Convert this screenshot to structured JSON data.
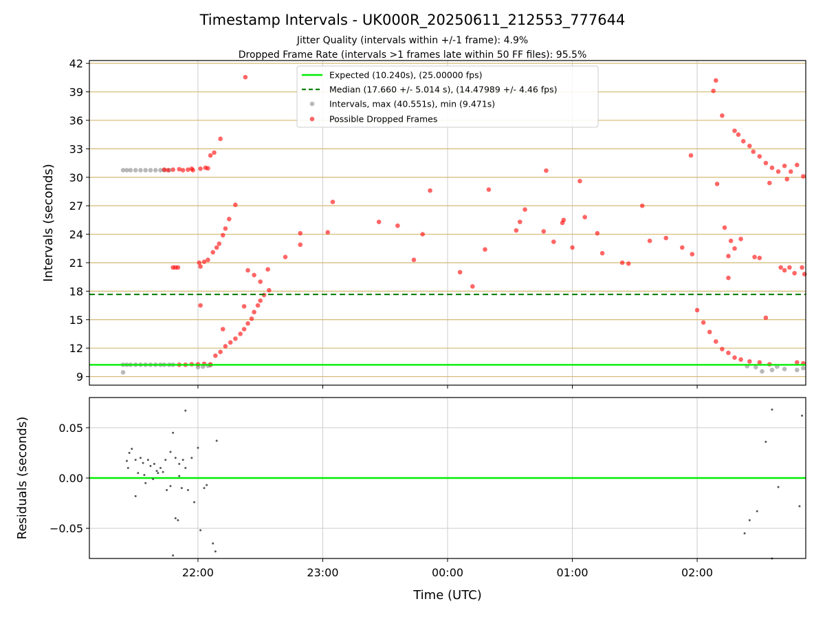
{
  "colors": {
    "expected": "#00ee00",
    "median": "#008000",
    "intervals": "#808080",
    "dropped": "#ff0000",
    "hgrid": "#d4b870",
    "vgrid": "#cccccc"
  },
  "title": "Timestamp Intervals - UK000R_20250611_212553_777644",
  "subtitle_1": "Jitter Quality (intervals within +/-1 frame): 4.9%",
  "subtitle_2": "Dropped Frame Rate (intervals >1 frames late within 50 FF files): 95.5%",
  "chart_data": [
    {
      "type": "scatter",
      "xlabel": "",
      "ylabel": "Intervals (seconds)",
      "x_unit": "hours since 00:00 UTC (negative = previous day)",
      "xlim": [
        -2.87,
        2.87
      ],
      "ylim": [
        8.1,
        42.3
      ],
      "x_ticks": [
        -2,
        -1,
        0,
        1,
        2
      ],
      "x_tick_labels": [
        "22:00",
        "23:00",
        "00:00",
        "01:00",
        "02:00"
      ],
      "y_ticks": [
        9,
        12,
        15,
        18,
        21,
        24,
        27,
        30,
        33,
        36,
        39,
        42
      ],
      "y_tick_labels": [
        "9",
        "12",
        "15",
        "18",
        "21",
        "24",
        "27",
        "30",
        "33",
        "36",
        "39",
        "42"
      ],
      "legend_position": "top-center",
      "legend": [
        "Expected (10.240s), (25.00000 fps)",
        "Median (17.660 +/- 5.014 s), (14.47989 +/- 4.46 fps)",
        "Intervals, max (40.551s), min (9.471s)",
        "Possible Dropped Frames"
      ],
      "expected_line": 10.24,
      "median_line": 17.66,
      "series": [
        {
          "name": "Intervals, max (40.551s), min (9.471s)",
          "points": [
            [
              -2.6,
              9.45
            ],
            [
              -2.6,
              30.75
            ],
            [
              -2.57,
              30.75
            ],
            [
              -2.54,
              30.75
            ],
            [
              -2.5,
              30.75
            ],
            [
              -2.46,
              30.75
            ],
            [
              -2.42,
              30.75
            ],
            [
              -2.38,
              30.75
            ],
            [
              -2.34,
              30.75
            ],
            [
              -2.3,
              30.75
            ],
            [
              -2.27,
              30.75
            ],
            [
              -2.23,
              30.75
            ],
            [
              -2.6,
              10.25
            ],
            [
              -2.57,
              10.25
            ],
            [
              -2.54,
              10.25
            ],
            [
              -2.5,
              10.25
            ],
            [
              -2.46,
              10.25
            ],
            [
              -2.42,
              10.25
            ],
            [
              -2.38,
              10.25
            ],
            [
              -2.34,
              10.25
            ],
            [
              -2.3,
              10.25
            ],
            [
              -2.27,
              10.25
            ],
            [
              -2.23,
              10.25
            ],
            [
              -2.2,
              10.25
            ],
            [
              -2.0,
              10.0
            ],
            [
              -1.96,
              10.05
            ],
            [
              -1.92,
              10.15
            ],
            [
              -1.9,
              10.2
            ],
            [
              2.4,
              10.1
            ],
            [
              2.47,
              10.0
            ],
            [
              2.52,
              9.55
            ],
            [
              2.6,
              9.7
            ],
            [
              2.64,
              10.05
            ],
            [
              2.7,
              9.8
            ],
            [
              2.8,
              9.7
            ],
            [
              2.85,
              9.9
            ]
          ]
        },
        {
          "name": "Possible Dropped Frames",
          "points": [
            [
              -2.27,
              30.8
            ],
            [
              -2.24,
              30.75
            ],
            [
              -2.2,
              30.8
            ],
            [
              -2.15,
              30.85
            ],
            [
              -2.12,
              30.75
            ],
            [
              -2.08,
              30.8
            ],
            [
              -2.05,
              30.9
            ],
            [
              -2.04,
              30.75
            ],
            [
              -1.98,
              30.9
            ],
            [
              -1.94,
              31.0
            ],
            [
              -1.92,
              30.95
            ],
            [
              -1.9,
              32.3
            ],
            [
              -1.87,
              32.6
            ],
            [
              -1.82,
              34.05
            ],
            [
              -1.7,
              27.1
            ],
            [
              -1.75,
              25.6
            ],
            [
              -1.78,
              24.6
            ],
            [
              -1.8,
              23.9
            ],
            [
              -1.83,
              23.0
            ],
            [
              -1.85,
              22.6
            ],
            [
              -1.88,
              22.1
            ],
            [
              -1.92,
              21.3
            ],
            [
              -1.95,
              21.1
            ],
            [
              -1.99,
              21.0
            ],
            [
              -1.98,
              20.6
            ],
            [
              -1.98,
              16.5
            ],
            [
              -2.2,
              20.5
            ],
            [
              -2.18,
              20.5
            ],
            [
              -2.16,
              20.5
            ],
            [
              -1.62,
              40.55
            ],
            [
              -1.8,
              14.0
            ],
            [
              -1.86,
              11.2
            ],
            [
              -1.82,
              11.6
            ],
            [
              -1.78,
              12.2
            ],
            [
              -1.74,
              12.6
            ],
            [
              -1.7,
              13.0
            ],
            [
              -1.66,
              13.5
            ],
            [
              -1.63,
              14.0
            ],
            [
              -1.6,
              14.6
            ],
            [
              -1.57,
              15.1
            ],
            [
              -1.55,
              15.8
            ],
            [
              -1.52,
              16.5
            ],
            [
              -1.5,
              17.0
            ],
            [
              -1.47,
              17.6
            ],
            [
              -1.43,
              18.1
            ],
            [
              -1.63,
              16.4
            ],
            [
              -1.6,
              20.2
            ],
            [
              -1.55,
              19.7
            ],
            [
              -1.5,
              19.0
            ],
            [
              -1.44,
              20.3
            ],
            [
              -1.3,
              21.6
            ],
            [
              -1.18,
              24.1
            ],
            [
              -1.18,
              22.9
            ],
            [
              -0.92,
              27.4
            ],
            [
              -0.96,
              24.2
            ],
            [
              -0.55,
              25.3
            ],
            [
              -0.4,
              24.9
            ],
            [
              -0.14,
              28.6
            ],
            [
              -0.2,
              24.0
            ],
            [
              -0.27,
              21.3
            ],
            [
              0.1,
              20.0
            ],
            [
              0.2,
              18.5
            ],
            [
              0.3,
              22.4
            ],
            [
              0.33,
              28.7
            ],
            [
              0.55,
              24.4
            ],
            [
              0.58,
              25.3
            ],
            [
              0.62,
              26.6
            ],
            [
              0.77,
              24.3
            ],
            [
              0.79,
              30.7
            ],
            [
              0.85,
              23.2
            ],
            [
              0.92,
              25.2
            ],
            [
              0.93,
              25.5
            ],
            [
              1.0,
              22.6
            ],
            [
              1.06,
              29.6
            ],
            [
              1.1,
              25.8
            ],
            [
              1.2,
              24.1
            ],
            [
              1.24,
              22.0
            ],
            [
              1.4,
              21.0
            ],
            [
              1.45,
              20.9
            ],
            [
              1.56,
              27.0
            ],
            [
              1.62,
              23.3
            ],
            [
              1.75,
              23.6
            ],
            [
              1.88,
              22.6
            ],
            [
              1.96,
              21.9
            ],
            [
              1.95,
              32.3
            ],
            [
              2.16,
              29.3
            ],
            [
              2.15,
              40.2
            ],
            [
              2.2,
              36.5
            ],
            [
              2.13,
              39.1
            ],
            [
              2.22,
              24.7
            ],
            [
              2.27,
              23.3
            ],
            [
              2.3,
              22.5
            ],
            [
              2.25,
              21.7
            ],
            [
              2.35,
              23.5
            ],
            [
              2.46,
              21.6
            ],
            [
              2.5,
              21.5
            ],
            [
              2.25,
              19.4
            ],
            [
              2.55,
              15.2
            ],
            [
              2.3,
              34.9
            ],
            [
              2.33,
              34.5
            ],
            [
              2.37,
              33.8
            ],
            [
              2.42,
              33.3
            ],
            [
              2.45,
              32.7
            ],
            [
              2.5,
              32.2
            ],
            [
              2.55,
              31.5
            ],
            [
              2.6,
              31.0
            ],
            [
              2.65,
              30.6
            ],
            [
              2.7,
              31.2
            ],
            [
              2.75,
              30.6
            ],
            [
              2.8,
              31.3
            ],
            [
              2.85,
              30.1
            ],
            [
              2.58,
              29.4
            ],
            [
              2.72,
              29.8
            ],
            [
              2.67,
              20.5
            ],
            [
              2.7,
              20.2
            ],
            [
              2.74,
              20.5
            ],
            [
              2.78,
              19.9
            ],
            [
              2.84,
              20.5
            ],
            [
              2.86,
              19.8
            ],
            [
              2.0,
              16.0
            ],
            [
              2.05,
              14.7
            ],
            [
              2.1,
              13.7
            ],
            [
              2.15,
              12.7
            ],
            [
              2.2,
              11.9
            ],
            [
              2.25,
              11.5
            ],
            [
              2.3,
              11.0
            ],
            [
              2.35,
              10.8
            ],
            [
              2.42,
              10.6
            ],
            [
              2.5,
              10.5
            ],
            [
              2.58,
              10.3
            ],
            [
              2.8,
              10.5
            ],
            [
              2.85,
              10.4
            ],
            [
              -2.15,
              10.25
            ],
            [
              -2.1,
              10.25
            ],
            [
              -2.05,
              10.3
            ],
            [
              -2.0,
              10.3
            ],
            [
              -1.95,
              10.35
            ],
            [
              -1.9,
              10.3
            ]
          ]
        }
      ]
    },
    {
      "type": "scatter",
      "xlabel": "Time (UTC)",
      "ylabel": "Residuals (seconds)",
      "xlim": [
        -2.87,
        2.87
      ],
      "ylim": [
        -0.08,
        0.08
      ],
      "y_ticks": [
        -0.05,
        0.0,
        0.05
      ],
      "y_tick_labels": [
        "−0.05",
        "0.00",
        "0.05"
      ],
      "x_tick_labels": [
        "22:00",
        "23:00",
        "00:00",
        "01:00",
        "02:00"
      ],
      "zero_line": 0.0,
      "series": [
        {
          "name": "residuals",
          "points": [
            [
              -2.57,
              0.017
            ],
            [
              -2.55,
              0.025
            ],
            [
              -2.53,
              0.029
            ],
            [
              -2.56,
              0.01
            ],
            [
              -2.5,
              0.018
            ],
            [
              -2.46,
              0.02
            ],
            [
              -2.44,
              0.015
            ],
            [
              -2.4,
              0.018
            ],
            [
              -2.38,
              0.012
            ],
            [
              -2.35,
              0.014
            ],
            [
              -2.3,
              0.01
            ],
            [
              -2.26,
              0.018
            ],
            [
              -2.22,
              0.026
            ],
            [
              -2.18,
              0.02
            ],
            [
              -2.15,
              0.014
            ],
            [
              -2.12,
              0.018
            ],
            [
              -2.1,
              0.01
            ],
            [
              -2.05,
              0.02
            ],
            [
              -2.48,
              0.005
            ],
            [
              -2.43,
              0.003
            ],
            [
              -2.36,
              -0.001
            ],
            [
              -2.32,
              0.005
            ],
            [
              -2.28,
              0.006
            ],
            [
              -2.25,
              -0.012
            ],
            [
              -2.22,
              -0.008
            ],
            [
              -2.18,
              -0.04
            ],
            [
              -2.16,
              -0.042
            ],
            [
              -2.2,
              -0.077
            ],
            [
              -2.13,
              -0.01
            ],
            [
              -2.08,
              -0.012
            ],
            [
              -2.03,
              -0.024
            ],
            [
              -1.98,
              -0.052
            ],
            [
              -1.95,
              -0.01
            ],
            [
              -1.93,
              -0.007
            ],
            [
              -1.88,
              -0.065
            ],
            [
              -1.86,
              -0.073
            ],
            [
              -2.1,
              0.067
            ],
            [
              -2.2,
              0.045
            ],
            [
              -1.85,
              0.037
            ],
            [
              -2.0,
              0.03
            ],
            [
              -2.5,
              -0.018
            ],
            [
              -2.42,
              -0.005
            ],
            [
              -2.33,
              0.007
            ],
            [
              -2.15,
              0.002
            ],
            [
              2.38,
              -0.055
            ],
            [
              2.42,
              -0.042
            ],
            [
              2.48,
              -0.033
            ],
            [
              2.55,
              0.036
            ],
            [
              2.6,
              0.068
            ],
            [
              2.65,
              -0.009
            ],
            [
              2.6,
              -0.08
            ],
            [
              2.82,
              -0.028
            ],
            [
              2.84,
              0.062
            ]
          ]
        }
      ]
    }
  ]
}
